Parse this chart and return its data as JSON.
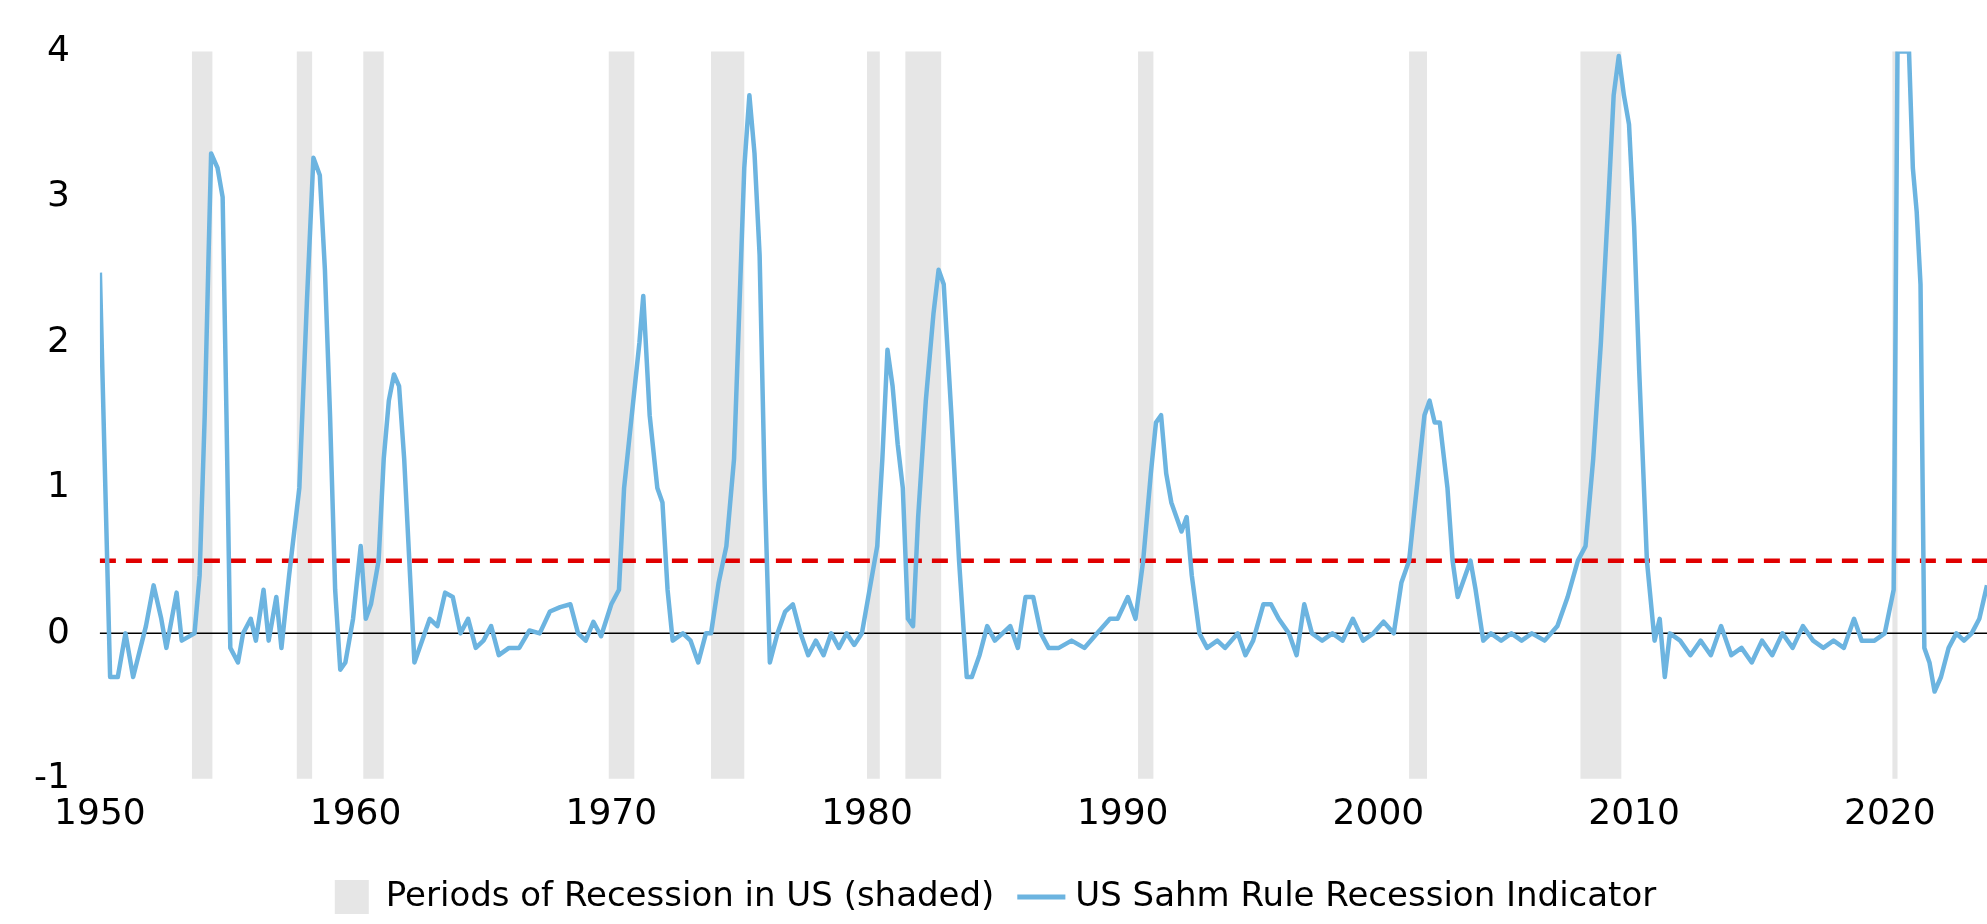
{
  "chart_data": {
    "type": "line",
    "legend": "bottom",
    "grid": false,
    "marker": "none",
    "xlim": [
      1950,
      2023.8
    ],
    "xticks": [
      1950,
      1960,
      1970,
      1980,
      1990,
      2000,
      2010,
      2020
    ],
    "ylim": [
      -1,
      4
    ],
    "yticks": [
      -1,
      0,
      1,
      2,
      3,
      4
    ],
    "x": [
      1950.0,
      1950.4,
      1950.7,
      1951.0,
      1951.3,
      1951.8,
      1952.1,
      1952.4,
      1952.6,
      1953.0,
      1953.2,
      1953.7,
      1953.9,
      1954.1,
      1954.25,
      1954.35,
      1954.6,
      1954.8,
      1954.95,
      1955.1,
      1955.4,
      1955.6,
      1955.9,
      1956.1,
      1956.4,
      1956.6,
      1956.9,
      1957.1,
      1957.4,
      1957.8,
      1958.1,
      1958.35,
      1958.6,
      1958.8,
      1959.0,
      1959.2,
      1959.4,
      1959.6,
      1959.9,
      1960.2,
      1960.4,
      1960.6,
      1960.9,
      1961.1,
      1961.3,
      1961.5,
      1961.7,
      1961.9,
      1962.1,
      1962.3,
      1962.6,
      1962.9,
      1963.2,
      1963.5,
      1963.8,
      1964.1,
      1964.4,
      1964.7,
      1965.0,
      1965.3,
      1965.6,
      1966.0,
      1966.4,
      1966.8,
      1967.2,
      1967.6,
      1968.0,
      1968.4,
      1968.7,
      1969.0,
      1969.3,
      1969.6,
      1970.0,
      1970.3,
      1970.5,
      1970.8,
      1971.1,
      1971.25,
      1971.5,
      1971.8,
      1972.0,
      1972.2,
      1972.4,
      1972.8,
      1973.1,
      1973.4,
      1973.7,
      1973.9,
      1974.2,
      1974.5,
      1974.8,
      1975.0,
      1975.2,
      1975.4,
      1975.6,
      1975.8,
      1976.0,
      1976.2,
      1976.5,
      1976.8,
      1977.1,
      1977.4,
      1977.7,
      1978.0,
      1978.3,
      1978.6,
      1978.9,
      1979.2,
      1979.5,
      1979.8,
      1980.1,
      1980.4,
      1980.6,
      1980.8,
      1981.0,
      1981.2,
      1981.4,
      1981.6,
      1981.8,
      1982.0,
      1982.3,
      1982.6,
      1982.8,
      1983.0,
      1983.3,
      1983.6,
      1983.9,
      1984.1,
      1984.4,
      1984.7,
      1985.0,
      1985.3,
      1985.6,
      1985.9,
      1986.2,
      1986.5,
      1986.8,
      1987.1,
      1987.5,
      1988.0,
      1988.5,
      1989.0,
      1989.5,
      1989.8,
      1990.2,
      1990.5,
      1990.8,
      1991.1,
      1991.3,
      1991.5,
      1991.7,
      1991.9,
      1992.1,
      1992.3,
      1992.5,
      1992.7,
      1993.0,
      1993.3,
      1993.7,
      1994.0,
      1994.5,
      1994.8,
      1995.1,
      1995.5,
      1995.8,
      1996.1,
      1996.5,
      1996.8,
      1997.1,
      1997.4,
      1997.8,
      1998.2,
      1998.6,
      1999.0,
      1999.4,
      1999.8,
      2000.2,
      2000.6,
      2000.9,
      2001.2,
      2001.5,
      2001.8,
      2002.0,
      2002.2,
      2002.4,
      2002.7,
      2002.9,
      2003.1,
      2003.4,
      2003.6,
      2003.8,
      2004.1,
      2004.4,
      2004.8,
      2005.2,
      2005.6,
      2006.0,
      2006.5,
      2007.0,
      2007.4,
      2007.8,
      2008.1,
      2008.4,
      2008.7,
      2009.0,
      2009.2,
      2009.4,
      2009.6,
      2009.8,
      2010.0,
      2010.2,
      2010.5,
      2010.8,
      2011.0,
      2011.2,
      2011.4,
      2011.8,
      2012.2,
      2012.6,
      2013.0,
      2013.4,
      2013.8,
      2014.2,
      2014.6,
      2015.0,
      2015.4,
      2015.8,
      2016.2,
      2016.6,
      2017.0,
      2017.4,
      2017.8,
      2018.2,
      2018.6,
      2018.9,
      2019.4,
      2019.8,
      2020.15,
      2020.3,
      2020.75,
      2020.9,
      2021.05,
      2021.2,
      2021.35,
      2021.55,
      2021.75,
      2022.0,
      2022.3,
      2022.6,
      2022.9,
      2023.2,
      2023.5,
      2023.8
    ],
    "series": [
      {
        "name": "US Sahm Rule Recession Indicator",
        "color": "#6cb4e0",
        "values": [
          2.48,
          -0.3,
          -0.3,
          0.0,
          -0.3,
          0.05,
          0.33,
          0.1,
          -0.1,
          0.28,
          -0.05,
          0.0,
          0.4,
          1.5,
          2.6,
          3.3,
          3.2,
          3.0,
          1.5,
          -0.1,
          -0.2,
          0.0,
          0.1,
          -0.05,
          0.3,
          -0.05,
          0.25,
          -0.1,
          0.4,
          1.0,
          2.3,
          3.27,
          3.15,
          2.5,
          1.5,
          0.3,
          -0.25,
          -0.2,
          0.1,
          0.6,
          0.1,
          0.2,
          0.5,
          1.2,
          1.6,
          1.78,
          1.7,
          1.2,
          0.5,
          -0.2,
          -0.05,
          0.1,
          0.05,
          0.28,
          0.25,
          0.0,
          0.1,
          -0.1,
          -0.05,
          0.05,
          -0.15,
          -0.1,
          -0.1,
          0.02,
          0.0,
          0.15,
          0.18,
          0.2,
          0.0,
          -0.05,
          0.08,
          -0.02,
          0.2,
          0.3,
          1.0,
          1.5,
          2.0,
          2.32,
          1.5,
          1.0,
          0.9,
          0.3,
          -0.05,
          0.0,
          -0.05,
          -0.2,
          0.0,
          0.0,
          0.35,
          0.6,
          1.2,
          2.2,
          3.2,
          3.7,
          3.3,
          2.6,
          1.0,
          -0.2,
          0.0,
          0.15,
          0.2,
          0.0,
          -0.15,
          -0.05,
          -0.15,
          0.0,
          -0.1,
          0.0,
          -0.08,
          0.0,
          0.3,
          0.6,
          1.2,
          1.95,
          1.7,
          1.3,
          1.0,
          0.1,
          0.05,
          0.8,
          1.6,
          2.2,
          2.5,
          2.4,
          1.5,
          0.5,
          -0.3,
          -0.3,
          -0.15,
          0.05,
          -0.05,
          0.0,
          0.05,
          -0.1,
          0.25,
          0.25,
          0.0,
          -0.1,
          -0.1,
          -0.05,
          -0.1,
          0.0,
          0.1,
          0.1,
          0.25,
          0.1,
          0.5,
          1.1,
          1.45,
          1.5,
          1.1,
          0.9,
          0.8,
          0.7,
          0.8,
          0.4,
          0.0,
          -0.1,
          -0.05,
          -0.1,
          0.0,
          -0.15,
          -0.05,
          0.2,
          0.2,
          0.1,
          0.0,
          -0.15,
          0.2,
          0.0,
          -0.05,
          0.0,
          -0.05,
          0.1,
          -0.05,
          0.0,
          0.08,
          0.0,
          0.35,
          0.5,
          1.0,
          1.5,
          1.6,
          1.45,
          1.45,
          1.0,
          0.5,
          0.25,
          0.4,
          0.5,
          0.3,
          -0.05,
          0.0,
          -0.05,
          0.0,
          -0.05,
          0.0,
          -0.05,
          0.05,
          0.25,
          0.5,
          0.6,
          1.2,
          2.0,
          3.0,
          3.7,
          3.97,
          3.7,
          3.5,
          2.8,
          1.8,
          0.5,
          -0.05,
          0.1,
          -0.3,
          0.0,
          -0.05,
          -0.15,
          -0.05,
          -0.15,
          0.05,
          -0.15,
          -0.1,
          -0.2,
          -0.05,
          -0.15,
          0.0,
          -0.1,
          0.05,
          -0.05,
          -0.1,
          -0.05,
          -0.1,
          0.1,
          -0.05,
          -0.05,
          0.0,
          0.3,
          4,
          4,
          3.2,
          2.9,
          2.4,
          -0.1,
          -0.2,
          -0.4,
          -0.3,
          -0.1,
          0.0,
          -0.05,
          0.0,
          0.1,
          0.33
        ]
      }
    ],
    "ref_lines": [
      {
        "axis": "y",
        "value": 0,
        "color": "#000000",
        "line_style": "solid"
      },
      {
        "axis": "y",
        "value": 0.5,
        "color": "#e00000",
        "line_style": "dashed"
      }
    ],
    "bands": [
      {
        "axis": "x",
        "from": 1953.6,
        "to": 1954.4,
        "color": "#e6e6e6",
        "label": "Periods of Recession in US (shaded)"
      },
      {
        "axis": "x",
        "from": 1957.7,
        "to": 1958.3,
        "color": "#e6e6e6"
      },
      {
        "axis": "x",
        "from": 1960.3,
        "to": 1961.1,
        "color": "#e6e6e6"
      },
      {
        "axis": "x",
        "from": 1969.9,
        "to": 1970.9,
        "color": "#e6e6e6"
      },
      {
        "axis": "x",
        "from": 1973.9,
        "to": 1975.2,
        "color": "#e6e6e6"
      },
      {
        "axis": "x",
        "from": 1980.0,
        "to": 1980.5,
        "color": "#e6e6e6"
      },
      {
        "axis": "x",
        "from": 1981.5,
        "to": 1982.9,
        "color": "#e6e6e6"
      },
      {
        "axis": "x",
        "from": 1990.6,
        "to": 1991.2,
        "color": "#e6e6e6"
      },
      {
        "axis": "x",
        "from": 2001.2,
        "to": 2001.9,
        "color": "#e6e6e6"
      },
      {
        "axis": "x",
        "from": 2007.9,
        "to": 2009.5,
        "color": "#e6e6e6"
      },
      {
        "axis": "x",
        "from": 2020.1,
        "to": 2020.3,
        "color": "#e6e6e6"
      }
    ]
  }
}
